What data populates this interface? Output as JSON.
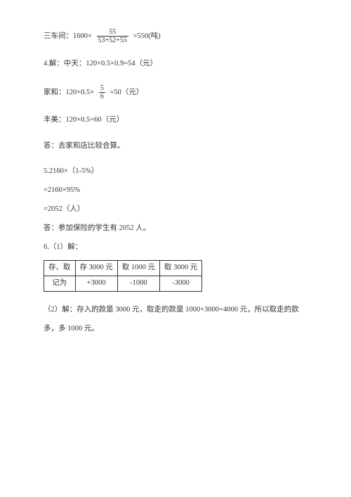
{
  "p1": {
    "a": "三车间：1600×",
    "frac": {
      "num": "55",
      "den": "53+52+55"
    },
    "b": "=550(吨)"
  },
  "p2": "4.解：中天：120×0.5×0.9=54（元）",
  "p3": {
    "a": "家和：120×0.5×",
    "frac": {
      "num": "5",
      "den": "6"
    },
    "b": "=50（元）"
  },
  "p4": "丰美：120×0.5=60（元）",
  "p5": "答：去家和店比较合算。",
  "p6a": "5.2160×（1-5%）",
  "p6b": "=2160×95%",
  "p6c": "=2052（人）",
  "p6d": "答：参加保险的学生有 2052 人。",
  "p7": "6.（1）解：",
  "table": {
    "header": [
      "存、取",
      "存 3000 元",
      "取 1000 元",
      "取 3000 元"
    ],
    "row": [
      "记为",
      "+3000",
      "-1000",
      "-3000"
    ]
  },
  "p8a": "（2）解：存入的款是 3000 元，取走的款是 1000+3000=4000 元，所以取走的款",
  "p8b": "多，多 1000 元。"
}
